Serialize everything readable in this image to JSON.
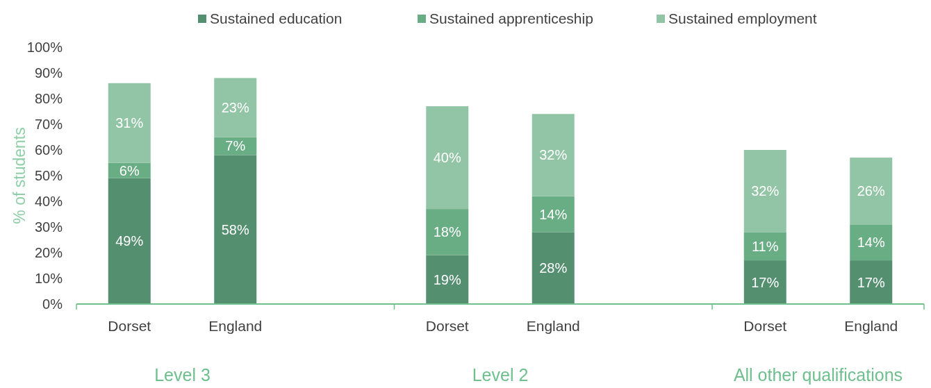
{
  "chart_data": {
    "type": "bar",
    "stacked": true,
    "ylabel": "% of students",
    "categories": [
      "Dorset",
      "England",
      null,
      "Dorset",
      "England",
      null,
      "Dorset",
      "England"
    ],
    "series": [
      {
        "name": "Sustained education",
        "color": "#548f6f",
        "values": [
          49,
          58,
          null,
          19,
          28,
          null,
          17,
          17
        ]
      },
      {
        "name": "Sustained apprenticeship",
        "color": "#68ad84",
        "values": [
          6,
          7,
          null,
          18,
          14,
          null,
          11,
          14
        ]
      },
      {
        "name": "Sustained employment",
        "color": "#92c5a5",
        "values": [
          31,
          23,
          null,
          40,
          32,
          null,
          32,
          26
        ]
      }
    ],
    "ylim": [
      0,
      100
    ],
    "yticks": [
      {
        "value": 0,
        "label": "0%"
      },
      {
        "value": 10,
        "label": "10%"
      },
      {
        "value": 20,
        "label": "20%"
      },
      {
        "value": 30,
        "label": "30%"
      },
      {
        "value": 40,
        "label": "40%"
      },
      {
        "value": 50,
        "label": "50%"
      },
      {
        "value": 60,
        "label": "60%"
      },
      {
        "value": 70,
        "label": "70%"
      },
      {
        "value": 80,
        "label": "80%"
      },
      {
        "value": 90,
        "label": "90%"
      },
      {
        "value": 100,
        "label": "100%"
      }
    ],
    "value_labels": [
      [
        "49%",
        "58%",
        null,
        "19%",
        "28%",
        null,
        "17%",
        "17%"
      ],
      [
        "6%",
        "7%",
        null,
        "18%",
        "14%",
        null,
        "11%",
        "14%"
      ],
      [
        "31%",
        "23%",
        null,
        "40%",
        "32%",
        null,
        "32%",
        "26%"
      ]
    ],
    "annotations": [
      "Level 3",
      "Level 2",
      "All other qualifications"
    ],
    "legend": "top",
    "grid": false
  }
}
